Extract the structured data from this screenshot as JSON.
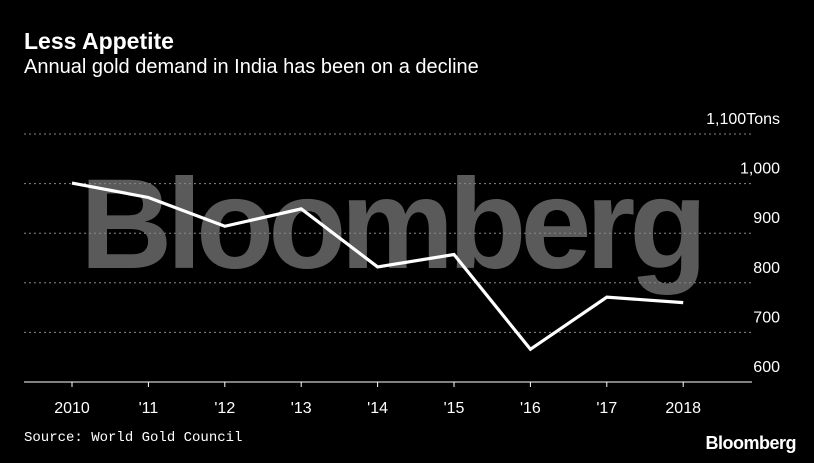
{
  "header": {
    "title": "Less Appetite",
    "subtitle": "Annual gold demand in India has been on a decline"
  },
  "footer": {
    "source": "Source: World Gold Council",
    "brand": "Bloomberg"
  },
  "watermark": "Bloomberg",
  "colors": {
    "background": "#000000",
    "line": "#ffffff",
    "grid": "#888888",
    "watermark": "#5a5a5a"
  },
  "chart_data": {
    "type": "line",
    "title": "Less Appetite",
    "subtitle": "Annual gold demand in India has been on a decline",
    "categories": [
      "2010",
      "'11",
      "'12",
      "'13",
      "'14",
      "'15",
      "'16",
      "'17",
      "2018"
    ],
    "series": [
      {
        "values": [
          1001,
          972,
          914,
          949,
          832,
          857,
          666,
          771,
          760
        ]
      }
    ],
    "unit": "Tons",
    "ylim": [
      600,
      1100
    ],
    "yticks": [
      600,
      700,
      800,
      900,
      1000,
      1100
    ],
    "ytick_labels": [
      "600",
      "700",
      "800",
      "900",
      "1,000",
      "1,100"
    ],
    "y_axis_position": "right",
    "grid": "horizontal dotted",
    "legend": "none"
  }
}
